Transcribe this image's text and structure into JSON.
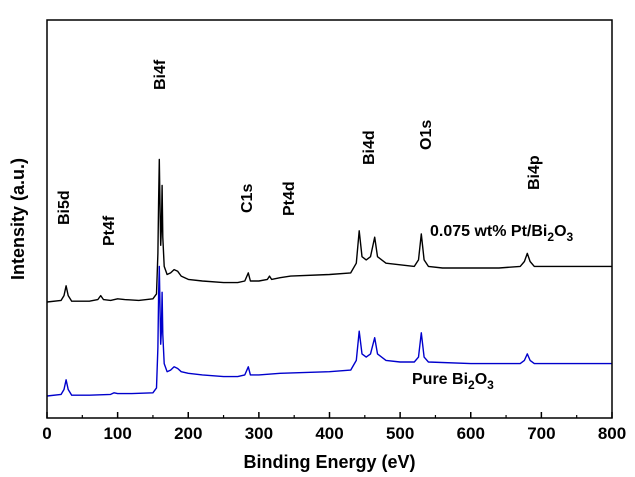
{
  "chart_data": {
    "type": "line",
    "xlabel": "Binding Energy (eV)",
    "ylabel": "Intensity (a.u.)",
    "xlim": [
      0,
      800
    ],
    "x_ticks": [
      0,
      100,
      200,
      300,
      400,
      500,
      600,
      700,
      800
    ],
    "y_ticks_shown": false,
    "grid": false,
    "peak_labels": [
      {
        "text": "Bi5d",
        "x": 27
      },
      {
        "text": "Pt4f",
        "x": 76
      },
      {
        "text": "Bi4f",
        "x": 159
      },
      {
        "text": "C1s",
        "x": 285
      },
      {
        "text": "Pt4d",
        "x": 315
      },
      {
        "text": "Bi4d",
        "x": 442
      },
      {
        "text": "O1s",
        "x": 530
      },
      {
        "text": "Bi4p",
        "x": 680
      }
    ],
    "series": [
      {
        "label_main": "0.075 wt% Pt/Bi",
        "label_sub": "2",
        "label_tail": "O",
        "label_sub2": "3",
        "color": "#000000",
        "offset": 58,
        "points": [
          [
            0,
            0
          ],
          [
            20,
            1
          ],
          [
            24,
            4
          ],
          [
            27,
            10
          ],
          [
            30,
            4
          ],
          [
            35,
            0.5
          ],
          [
            60,
            0.5
          ],
          [
            72,
            1.5
          ],
          [
            76,
            4
          ],
          [
            80,
            1.5
          ],
          [
            90,
            1
          ],
          [
            100,
            2
          ],
          [
            110,
            1.5
          ],
          [
            130,
            1
          ],
          [
            150,
            2
          ],
          [
            155,
            5
          ],
          [
            157,
            30
          ],
          [
            158,
            62
          ],
          [
            159,
            88
          ],
          [
            160,
            60
          ],
          [
            161,
            35
          ],
          [
            162,
            45
          ],
          [
            163,
            72
          ],
          [
            164,
            40
          ],
          [
            166,
            22
          ],
          [
            170,
            17
          ],
          [
            175,
            18
          ],
          [
            180,
            20
          ],
          [
            185,
            19
          ],
          [
            190,
            16
          ],
          [
            200,
            14
          ],
          [
            220,
            13
          ],
          [
            250,
            12
          ],
          [
            270,
            12
          ],
          [
            280,
            13
          ],
          [
            285,
            18
          ],
          [
            288,
            13
          ],
          [
            300,
            13
          ],
          [
            312,
            14
          ],
          [
            315,
            16
          ],
          [
            318,
            14
          ],
          [
            330,
            15
          ],
          [
            345,
            16
          ],
          [
            400,
            17
          ],
          [
            430,
            18
          ],
          [
            438,
            24
          ],
          [
            442,
            44
          ],
          [
            446,
            28
          ],
          [
            452,
            26
          ],
          [
            458,
            28
          ],
          [
            464,
            40
          ],
          [
            468,
            28
          ],
          [
            480,
            24
          ],
          [
            500,
            23
          ],
          [
            520,
            22
          ],
          [
            526,
            26
          ],
          [
            530,
            42
          ],
          [
            534,
            26
          ],
          [
            540,
            22
          ],
          [
            560,
            21
          ],
          [
            600,
            21
          ],
          [
            640,
            21
          ],
          [
            670,
            22
          ],
          [
            676,
            25
          ],
          [
            680,
            30
          ],
          [
            684,
            25
          ],
          [
            690,
            22
          ],
          [
            720,
            22
          ],
          [
            760,
            22
          ],
          [
            800,
            22
          ]
        ]
      },
      {
        "label_main": "Pure Bi",
        "label_sub": "2",
        "label_tail": "O",
        "label_sub2": "3",
        "color": "#0000cc",
        "offset": 0,
        "points": [
          [
            0,
            0
          ],
          [
            20,
            1
          ],
          [
            24,
            4
          ],
          [
            27,
            10
          ],
          [
            30,
            4
          ],
          [
            35,
            0.5
          ],
          [
            60,
            0.5
          ],
          [
            90,
            1
          ],
          [
            95,
            2
          ],
          [
            100,
            1.5
          ],
          [
            120,
            1.5
          ],
          [
            150,
            2
          ],
          [
            155,
            5
          ],
          [
            157,
            30
          ],
          [
            158,
            62
          ],
          [
            159,
            80
          ],
          [
            160,
            55
          ],
          [
            161,
            32
          ],
          [
            162,
            40
          ],
          [
            163,
            64
          ],
          [
            164,
            38
          ],
          [
            166,
            20
          ],
          [
            170,
            15
          ],
          [
            175,
            16
          ],
          [
            180,
            18
          ],
          [
            185,
            17
          ],
          [
            190,
            15
          ],
          [
            200,
            14
          ],
          [
            220,
            13
          ],
          [
            250,
            12
          ],
          [
            270,
            12
          ],
          [
            280,
            13
          ],
          [
            285,
            18
          ],
          [
            288,
            13
          ],
          [
            300,
            13
          ],
          [
            330,
            14
          ],
          [
            400,
            15
          ],
          [
            430,
            16
          ],
          [
            438,
            22
          ],
          [
            442,
            40
          ],
          [
            446,
            26
          ],
          [
            452,
            24
          ],
          [
            458,
            26
          ],
          [
            464,
            36
          ],
          [
            468,
            26
          ],
          [
            480,
            22
          ],
          [
            500,
            21
          ],
          [
            520,
            21
          ],
          [
            526,
            24
          ],
          [
            530,
            39
          ],
          [
            534,
            24
          ],
          [
            540,
            21
          ],
          [
            600,
            20
          ],
          [
            670,
            20
          ],
          [
            676,
            22
          ],
          [
            680,
            26
          ],
          [
            684,
            22
          ],
          [
            690,
            20
          ],
          [
            760,
            20
          ],
          [
            800,
            20
          ]
        ]
      }
    ]
  }
}
